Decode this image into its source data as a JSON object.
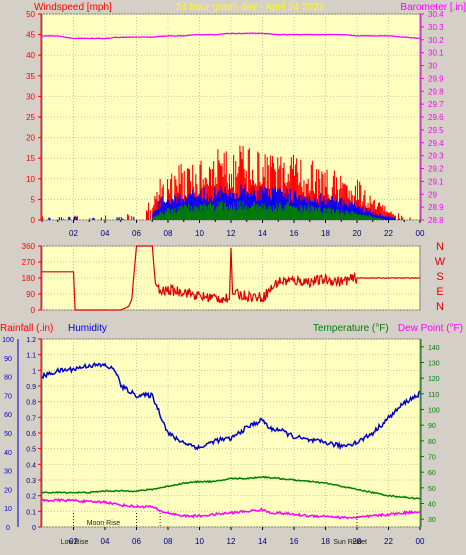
{
  "header": {
    "windspeed_label": "Windspeed [mph]",
    "title": "24 hour graph day - April 24 2022",
    "barometer_label": "Barometer [.in]"
  },
  "lower_header": {
    "rainfall_label": "Rainfall (.in)",
    "humidity_label": "Humidity",
    "temperature_label": "Temperature (°F)",
    "dewpoint_label": "Dew Point (°F)"
  },
  "compass": [
    "N",
    "W",
    "S",
    "E",
    "N"
  ],
  "colors": {
    "background": "#d4d0c8",
    "plot_bg": "#ffffc0",
    "wind_gust": "#ff0000",
    "wind_avg": "#0000ff",
    "wind_low": "#008000",
    "barometer": "#ff00ff",
    "direction": "#e00000",
    "humidity": "#0000cc",
    "temperature": "#008000",
    "dewpoint": "#ff00ff",
    "title": "#ffff00",
    "axis_red": "#ff0000"
  },
  "x_ticks": [
    "02",
    "04",
    "06",
    "08",
    "10",
    "12",
    "14",
    "16",
    "18",
    "20",
    "22",
    "00"
  ],
  "events": [
    "Low",
    "Rise",
    "Moon Rise",
    "Sun Rise",
    "Set"
  ],
  "chart_data": [
    {
      "type": "bar",
      "name": "wind",
      "title": "24 hour graph day - April 24 2022",
      "ylabel": "Windspeed [mph]",
      "y2label": "Barometer [.in]",
      "ylim": [
        0,
        50
      ],
      "y_ticks": [
        0,
        5,
        10,
        15,
        20,
        25,
        30,
        35,
        40,
        45,
        50
      ],
      "y2lim": [
        28.8,
        30.4
      ],
      "y2_ticks": [
        "28.8",
        "28.9",
        "29",
        "29.1",
        "29.2",
        "29.3",
        "29.4",
        "29.5",
        "29.6",
        "29.7",
        "29.8",
        "29.9",
        "30",
        "30.1",
        "30.2",
        "30.3",
        "30.4"
      ],
      "xlim": [
        0,
        24
      ],
      "gust_envelope": [
        [
          0,
          1
        ],
        [
          1,
          1.5
        ],
        [
          2,
          2
        ],
        [
          3,
          1
        ],
        [
          4,
          1.2
        ],
        [
          5,
          1
        ],
        [
          6,
          2
        ],
        [
          7,
          5
        ],
        [
          7.5,
          11
        ],
        [
          8,
          12
        ],
        [
          9,
          14
        ],
        [
          10,
          15
        ],
        [
          11,
          17
        ],
        [
          12,
          19
        ],
        [
          13,
          18
        ],
        [
          14,
          17
        ],
        [
          15,
          16
        ],
        [
          16,
          16
        ],
        [
          17,
          15
        ],
        [
          18,
          13
        ],
        [
          19,
          12
        ],
        [
          20,
          10
        ],
        [
          21,
          6
        ],
        [
          22,
          3
        ],
        [
          23,
          1
        ]
      ],
      "avg_envelope": [
        [
          0,
          0.5
        ],
        [
          2,
          0.8
        ],
        [
          3,
          0.5
        ],
        [
          6,
          0.8
        ],
        [
          7,
          2
        ],
        [
          7.5,
          5
        ],
        [
          8,
          6
        ],
        [
          10,
          7
        ],
        [
          12,
          8
        ],
        [
          13,
          8
        ],
        [
          14,
          7.5
        ],
        [
          16,
          7
        ],
        [
          18,
          6
        ],
        [
          20,
          4
        ],
        [
          21,
          2
        ],
        [
          22,
          1
        ],
        [
          23,
          0
        ]
      ],
      "low_envelope": [
        [
          0,
          0
        ],
        [
          7,
          0.5
        ],
        [
          7.5,
          2
        ],
        [
          8,
          3
        ],
        [
          10,
          4
        ],
        [
          12,
          4.5
        ],
        [
          14,
          4
        ],
        [
          16,
          4
        ],
        [
          18,
          3
        ],
        [
          20,
          2
        ],
        [
          21,
          1
        ],
        [
          22,
          0
        ],
        [
          23,
          0
        ]
      ],
      "barometer": [
        [
          0,
          30.23
        ],
        [
          1,
          30.23
        ],
        [
          2,
          30.21
        ],
        [
          3,
          30.21
        ],
        [
          4,
          30.21
        ],
        [
          5,
          30.22
        ],
        [
          6,
          30.22
        ],
        [
          7,
          30.22
        ],
        [
          8,
          30.23
        ],
        [
          9,
          30.23
        ],
        [
          10,
          30.24
        ],
        [
          11,
          30.24
        ],
        [
          12,
          30.25
        ],
        [
          13,
          30.25
        ],
        [
          14,
          30.25
        ],
        [
          15,
          30.24
        ],
        [
          16,
          30.24
        ],
        [
          17,
          30.24
        ],
        [
          18,
          30.24
        ],
        [
          19,
          30.24
        ],
        [
          20,
          30.23
        ],
        [
          21,
          30.23
        ],
        [
          22,
          30.23
        ],
        [
          23,
          30.22
        ],
        [
          24,
          30.21
        ]
      ]
    },
    {
      "type": "line",
      "name": "wind direction",
      "ylim": [
        0,
        360
      ],
      "y_ticks": [
        0,
        90,
        180,
        270,
        360
      ],
      "xlim": [
        0,
        24
      ],
      "direction": [
        [
          0,
          215
        ],
        [
          1,
          215
        ],
        [
          2,
          215
        ],
        [
          2.1,
          0
        ],
        [
          3,
          0
        ],
        [
          4,
          0
        ],
        [
          5,
          0
        ],
        [
          5.5,
          20
        ],
        [
          5.7,
          60
        ],
        [
          6,
          360
        ],
        [
          7,
          360
        ],
        [
          7.2,
          150
        ],
        [
          7.5,
          100
        ],
        [
          8,
          110
        ],
        [
          9,
          105
        ],
        [
          10,
          75
        ],
        [
          11,
          70
        ],
        [
          11.9,
          60
        ],
        [
          12,
          350
        ],
        [
          12.1,
          90
        ],
        [
          13,
          80
        ],
        [
          14,
          70
        ],
        [
          15,
          160
        ],
        [
          16,
          165
        ],
        [
          17,
          160
        ],
        [
          18,
          170
        ],
        [
          19,
          160
        ],
        [
          20,
          180
        ],
        [
          21,
          180
        ],
        [
          22,
          180
        ],
        [
          23,
          180
        ],
        [
          24,
          180
        ]
      ]
    },
    {
      "type": "line",
      "name": "humidity temperature",
      "ylabel": "Rainfall (.in)",
      "y2label": "Temperature (°F)",
      "y3label": "Dew Point (°F)",
      "humidity_ylim": [
        0,
        100
      ],
      "humidity_ticks": [
        0,
        10,
        20,
        30,
        40,
        50,
        60,
        70,
        80,
        90,
        100
      ],
      "rain_ylim": [
        0,
        1.2
      ],
      "rain_ticks": [
        "0",
        "0.1",
        "0.2",
        "0.3",
        "0.4",
        "0.5",
        "0.6",
        "0.7",
        "0.8",
        "0.9",
        "1",
        "1.1",
        "1.2"
      ],
      "temp_ylim": [
        25,
        145
      ],
      "temp_ticks": [
        30,
        40,
        50,
        60,
        70,
        80,
        90,
        100,
        110,
        120,
        130,
        140
      ],
      "xlim": [
        0,
        24
      ],
      "humidity": [
        [
          0,
          80
        ],
        [
          1,
          83
        ],
        [
          2,
          84
        ],
        [
          3,
          86
        ],
        [
          4,
          86
        ],
        [
          4.7,
          83
        ],
        [
          5,
          75
        ],
        [
          6,
          70
        ],
        [
          7,
          70
        ],
        [
          7.5,
          60
        ],
        [
          8,
          50
        ],
        [
          8.5,
          47
        ],
        [
          9,
          45
        ],
        [
          10,
          42
        ],
        [
          11,
          46
        ],
        [
          12,
          47
        ],
        [
          13,
          53
        ],
        [
          14,
          57
        ],
        [
          14.5,
          52
        ],
        [
          15,
          52
        ],
        [
          16,
          48
        ],
        [
          17,
          46
        ],
        [
          18,
          45
        ],
        [
          19,
          43
        ],
        [
          20,
          45
        ],
        [
          21,
          50
        ],
        [
          22,
          58
        ],
        [
          23,
          66
        ],
        [
          24,
          71
        ]
      ],
      "temperature": [
        [
          0,
          47
        ],
        [
          1,
          47
        ],
        [
          2,
          47
        ],
        [
          3,
          47
        ],
        [
          4,
          48
        ],
        [
          5,
          48
        ],
        [
          6,
          48
        ],
        [
          7,
          49
        ],
        [
          8,
          51
        ],
        [
          9,
          53
        ],
        [
          10,
          54
        ],
        [
          11,
          54
        ],
        [
          12,
          56
        ],
        [
          13,
          56
        ],
        [
          14,
          57
        ],
        [
          15,
          56
        ],
        [
          16,
          55
        ],
        [
          17,
          54
        ],
        [
          18,
          53
        ],
        [
          19,
          51
        ],
        [
          20,
          49
        ],
        [
          21,
          47
        ],
        [
          22,
          45
        ],
        [
          23,
          44
        ],
        [
          24,
          43
        ]
      ],
      "dewpoint": [
        [
          0,
          42
        ],
        [
          1,
          42
        ],
        [
          2,
          42
        ],
        [
          3,
          41
        ],
        [
          4,
          41
        ],
        [
          5,
          39
        ],
        [
          6,
          38
        ],
        [
          7,
          38
        ],
        [
          7.5,
          35
        ],
        [
          8,
          34
        ],
        [
          9,
          32
        ],
        [
          10,
          32
        ],
        [
          11,
          33
        ],
        [
          12,
          34
        ],
        [
          13,
          35
        ],
        [
          14,
          36
        ],
        [
          14.5,
          34
        ],
        [
          15,
          34
        ],
        [
          16,
          33
        ],
        [
          17,
          32
        ],
        [
          18,
          32
        ],
        [
          19,
          31
        ],
        [
          20,
          31
        ],
        [
          21,
          32
        ],
        [
          22,
          33
        ],
        [
          23,
          34
        ],
        [
          24,
          35
        ]
      ]
    }
  ]
}
